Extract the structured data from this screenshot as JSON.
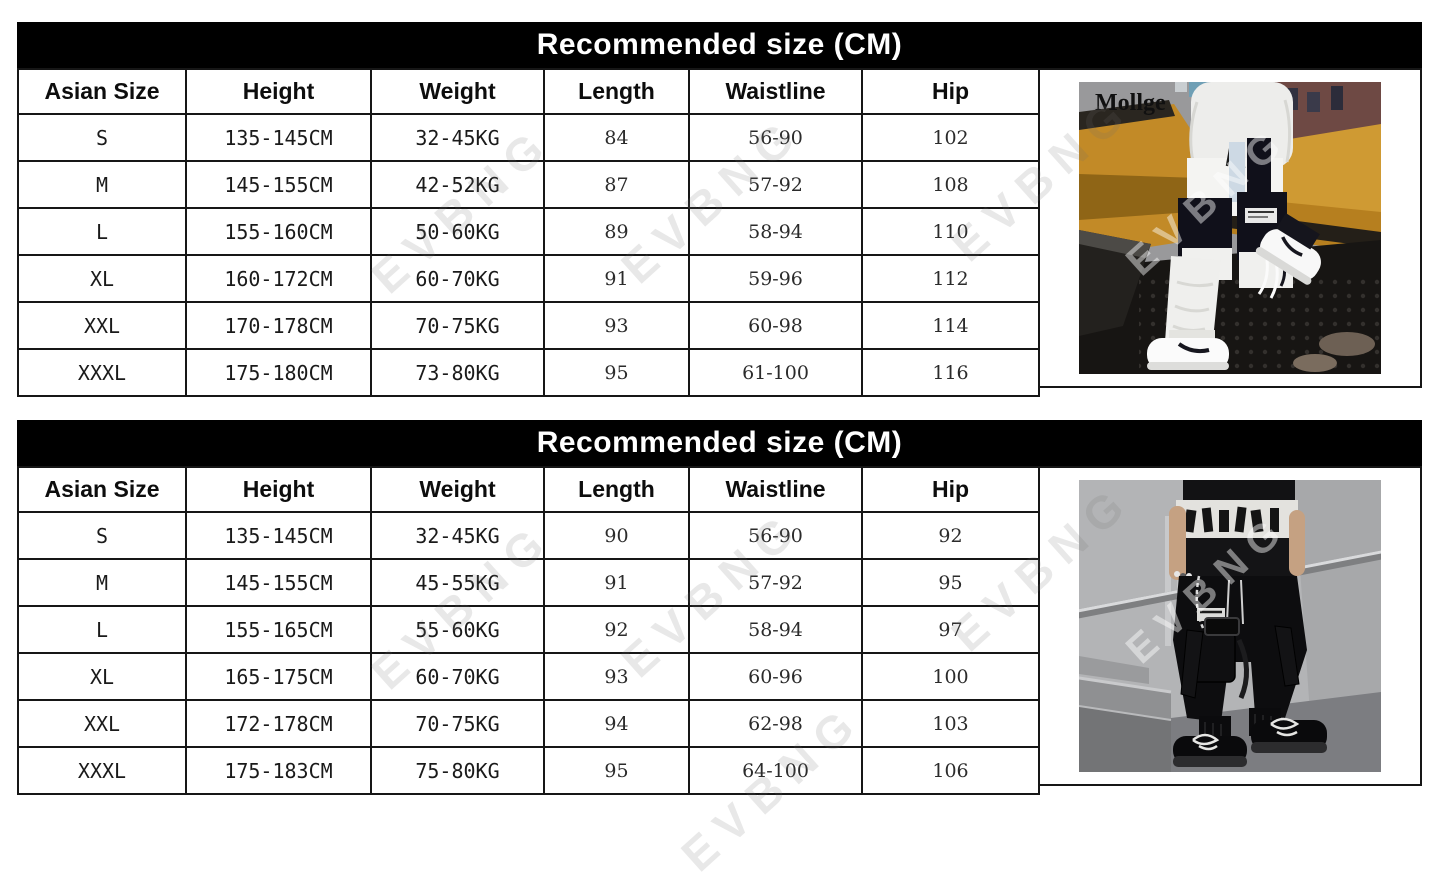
{
  "page": {
    "watermark": "EVBNG"
  },
  "size_charts": [
    {
      "title": "Recommended size (CM)",
      "columns": [
        "Asian Size",
        "Height",
        "Weight",
        "Length",
        "Waistline",
        "Hip"
      ],
      "rows": [
        [
          "S",
          "135-145CM",
          "32-45KG",
          "84",
          "56-90",
          "102"
        ],
        [
          "M",
          "145-155CM",
          "42-52KG",
          "87",
          "57-92",
          "108"
        ],
        [
          "L",
          "155-160CM",
          "50-60KG",
          "89",
          "58-94",
          "110"
        ],
        [
          "XL",
          "160-172CM",
          "60-70KG",
          "91",
          "59-96",
          "112"
        ],
        [
          "XXL",
          "170-178CM",
          "70-75KG",
          "93",
          "60-98",
          "114"
        ],
        [
          "XXXL",
          "175-180CM",
          "73-80KG",
          "95",
          "61-100",
          "116"
        ]
      ],
      "photo": {
        "brand": "Mollge",
        "description": "Model in white cargo jogger pants with black pockets and white sneakers, standing on yellow construction machinery"
      }
    },
    {
      "title": "Recommended size (CM)",
      "columns": [
        "Asian Size",
        "Height",
        "Weight",
        "Length",
        "Waistline",
        "Hip"
      ],
      "rows": [
        [
          "S",
          "135-145CM",
          "32-45KG",
          "90",
          "56-90",
          "92"
        ],
        [
          "M",
          "145-155CM",
          "45-55KG",
          "91",
          "57-92",
          "95"
        ],
        [
          "L",
          "155-165CM",
          "55-60KG",
          "92",
          "58-94",
          "97"
        ],
        [
          "XL",
          "165-175CM",
          "60-70KG",
          "93",
          "60-96",
          "100"
        ],
        [
          "XXL",
          "172-178CM",
          "70-75KG",
          "94",
          "62-98",
          "103"
        ],
        [
          "XXXL",
          "175-183CM",
          "75-80KG",
          "95",
          "64-100",
          "106"
        ]
      ],
      "photo": {
        "brand": "",
        "description": "Model in black techwear cargo pants with straps and buckles, chunky black sneakers, on concrete steps"
      }
    }
  ]
}
